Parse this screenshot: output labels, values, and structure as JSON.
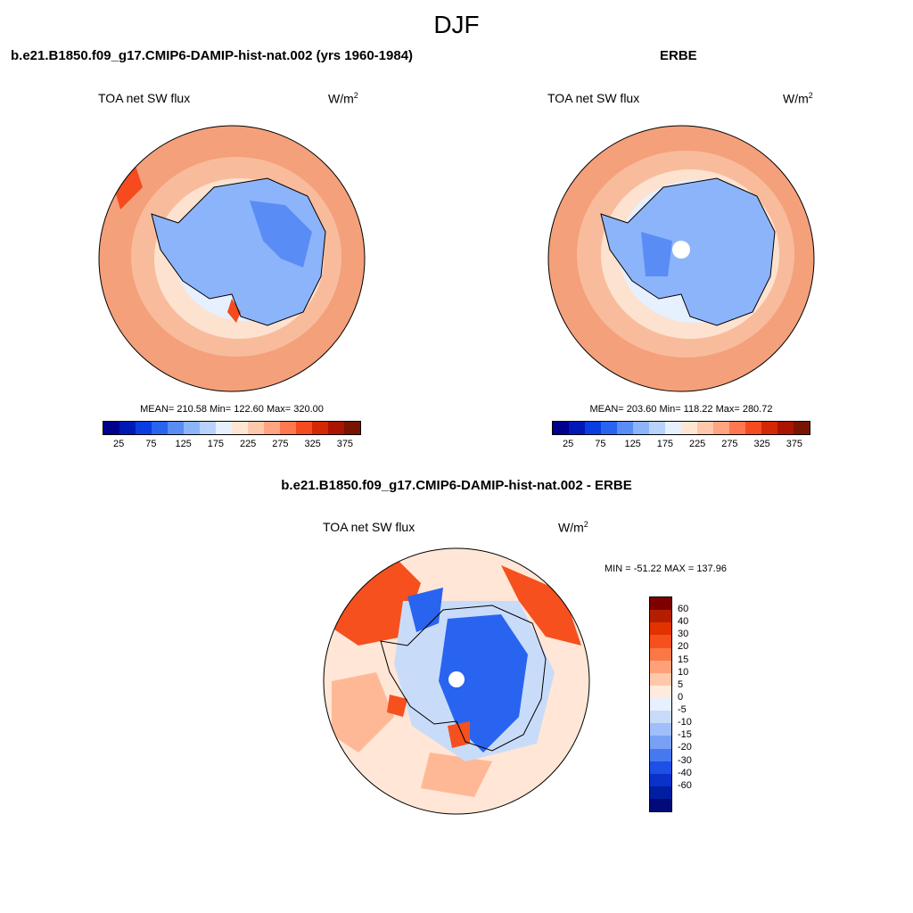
{
  "page": {
    "title": "DJF"
  },
  "panels": {
    "model": {
      "title": "b.e21.B1850.f09_g17.CMIP6-DAMIP-hist-nat.002 (yrs 1960-1984)",
      "left_label": "TOA net SW flux",
      "units": "W/m",
      "units_sup": "2",
      "stats": "MEAN= 210.58  Min= 122.60  Max= 320.00"
    },
    "obs": {
      "title": "ERBE",
      "left_label": "TOA net SW flux",
      "units": "W/m",
      "units_sup": "2",
      "stats": "MEAN= 203.60  Min= 118.22  Max= 280.72"
    },
    "diff": {
      "title": "b.e21.B1850.f09_g17.CMIP6-DAMIP-hist-nat.002 - ERBE",
      "left_label": "TOA net SW flux",
      "units": "W/m",
      "units_sup": "2",
      "minmax": "MIN = -51.22 MAX = 137.96"
    }
  },
  "colorbars": {
    "absolute": {
      "colors": [
        "#00008c",
        "#0019b4",
        "#0a3ce1",
        "#2864f0",
        "#5a8cf5",
        "#8cb4fa",
        "#b9d2fc",
        "#e6f0ff",
        "#ffe6d2",
        "#ffc8aa",
        "#ffa582",
        "#ff7850",
        "#f54b1e",
        "#d22805",
        "#aa1400",
        "#781400"
      ],
      "tick_labels": [
        "25",
        "75",
        "125",
        "175",
        "225",
        "275",
        "325",
        "375"
      ]
    },
    "difference": {
      "colors": [
        "#7d0000",
        "#b41e00",
        "#e13200",
        "#f5501e",
        "#fa7846",
        "#ffa078",
        "#ffc8aa",
        "#ffebdc",
        "#e6f0ff",
        "#c8dcfa",
        "#a0befa",
        "#78a0f5",
        "#4678f0",
        "#1e50e6",
        "#0a32c8",
        "#001ea0",
        "#000a78"
      ],
      "tick_labels": [
        "60",
        "40",
        "30",
        "20",
        "15",
        "10",
        "5",
        "0",
        "-5",
        "-10",
        "-15",
        "-20",
        "-30",
        "-40",
        "-60"
      ]
    }
  },
  "maps": {
    "colors": {
      "ocean_far": "#f4a07a",
      "ocean_mid": "#f8bc9c",
      "ocean_near": "#fde2d0",
      "sea_ice": "#e6f0ff",
      "land_light": "#8cb4fa",
      "land_dark": "#5a8cf5",
      "hot_spot": "#f54b1e",
      "diff_bg": "#ffe6d6",
      "diff_pos": "#f5501e",
      "diff_pos_light": "#ffb896",
      "diff_neg": "#2864f0",
      "diff_neg_light": "#c8dcfa",
      "coast": "#000000"
    }
  }
}
